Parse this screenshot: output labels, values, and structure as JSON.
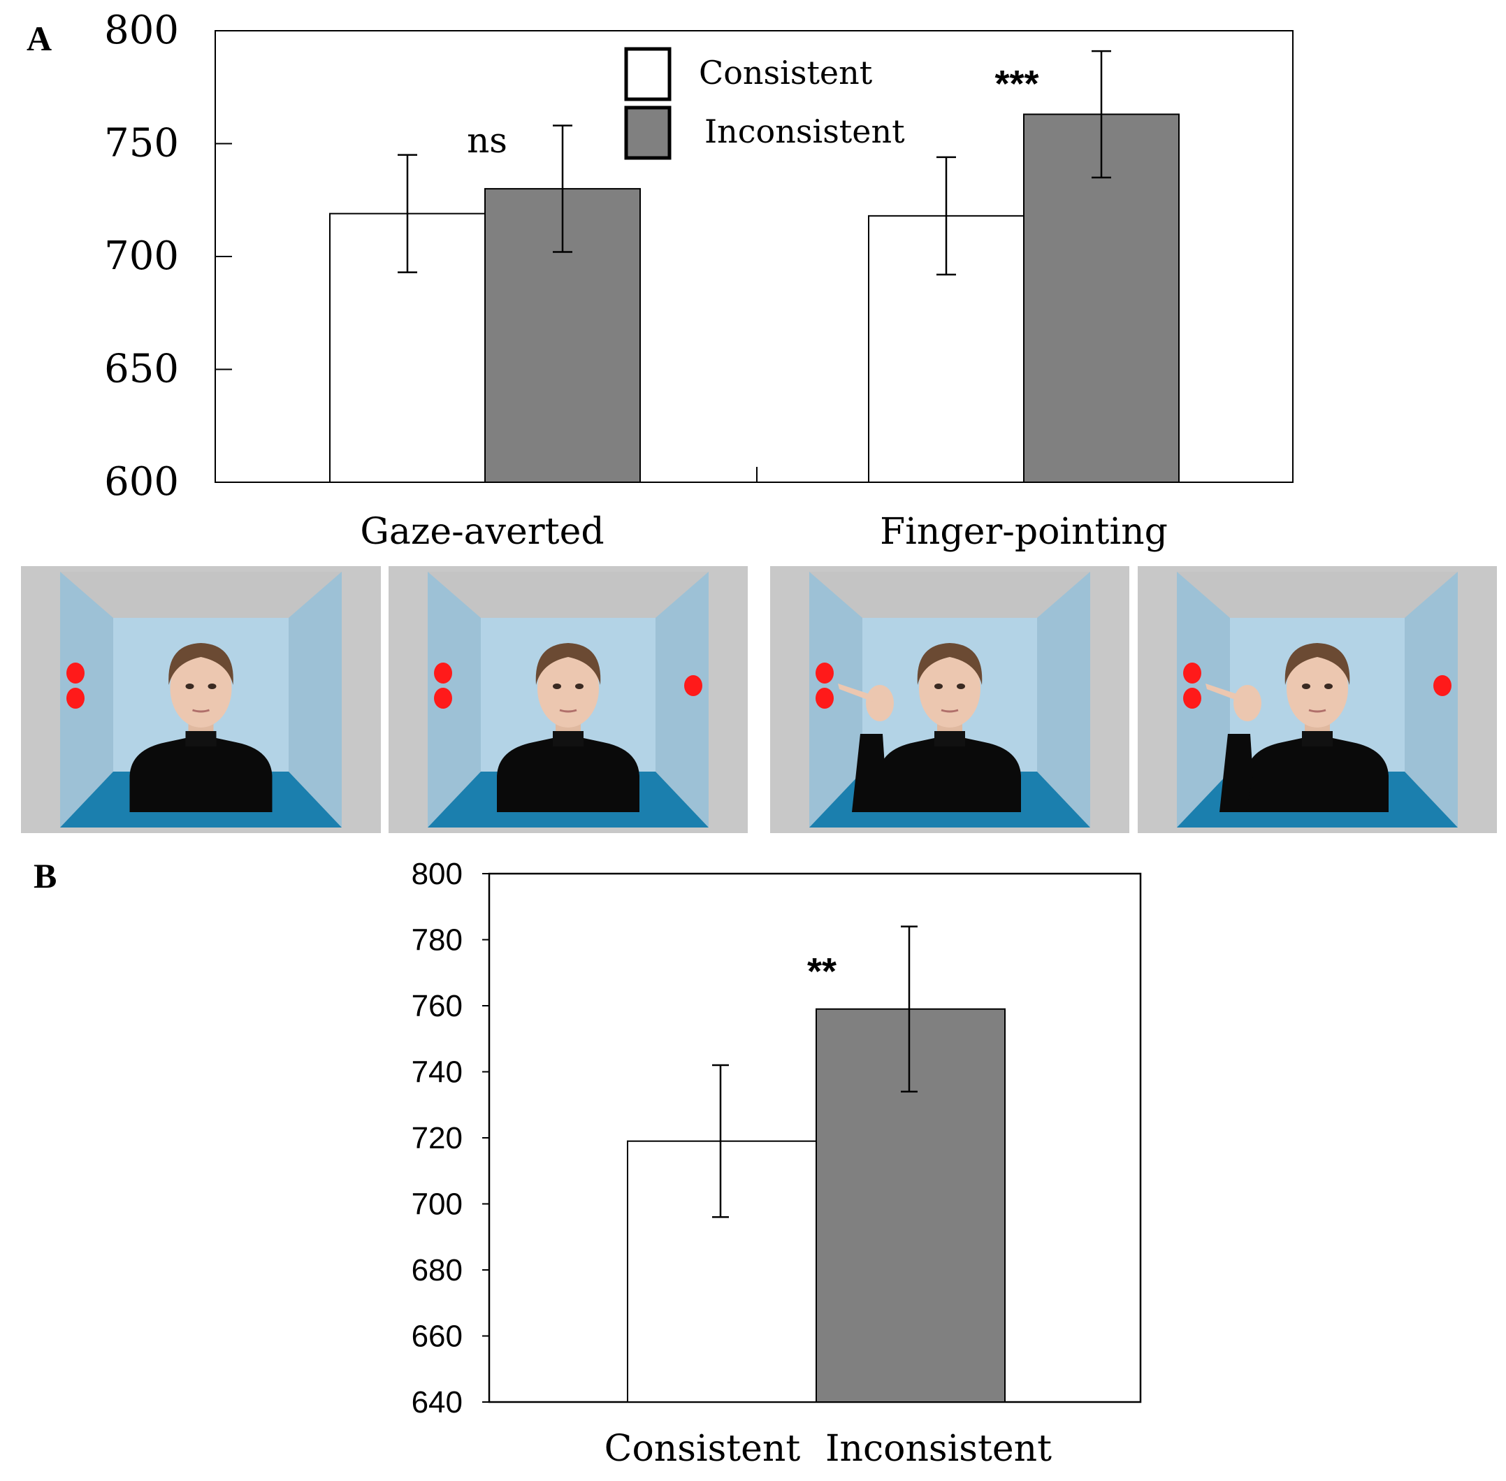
{
  "chart_data": [
    {
      "panel": "A",
      "type": "bar",
      "categories": [
        "Gaze-averted",
        "Finger-pointing"
      ],
      "series": [
        {
          "name": "Consistent",
          "values": [
            719,
            718
          ],
          "errors": [
            26,
            26
          ],
          "color": "#ffffff"
        },
        {
          "name": "Inconsistent",
          "values": [
            730,
            763
          ],
          "errors": [
            28,
            28
          ],
          "color": "#808080"
        }
      ],
      "annotations": [
        "ns",
        "***"
      ],
      "yticks": [
        600,
        650,
        700,
        750,
        800
      ],
      "ylim": [
        600,
        800
      ],
      "legend": {
        "position": "top-center"
      }
    },
    {
      "panel": "B",
      "type": "bar",
      "categories": [
        "Consistent",
        "Inconsistent"
      ],
      "values": [
        719,
        759
      ],
      "errors": [
        23,
        25
      ],
      "colors": [
        "#ffffff",
        "#808080"
      ],
      "annotation": "**",
      "yticks": [
        640,
        660,
        680,
        700,
        720,
        740,
        760,
        780,
        800
      ],
      "ylim": [
        640,
        800
      ]
    }
  ],
  "stimuli": [
    {
      "condition": "Gaze-averted",
      "target_side": "left"
    },
    {
      "condition": "Gaze-averted",
      "target_side": "right"
    },
    {
      "condition": "Finger-pointing",
      "target_side": "left"
    },
    {
      "condition": "Finger-pointing",
      "target_side": "right"
    }
  ]
}
